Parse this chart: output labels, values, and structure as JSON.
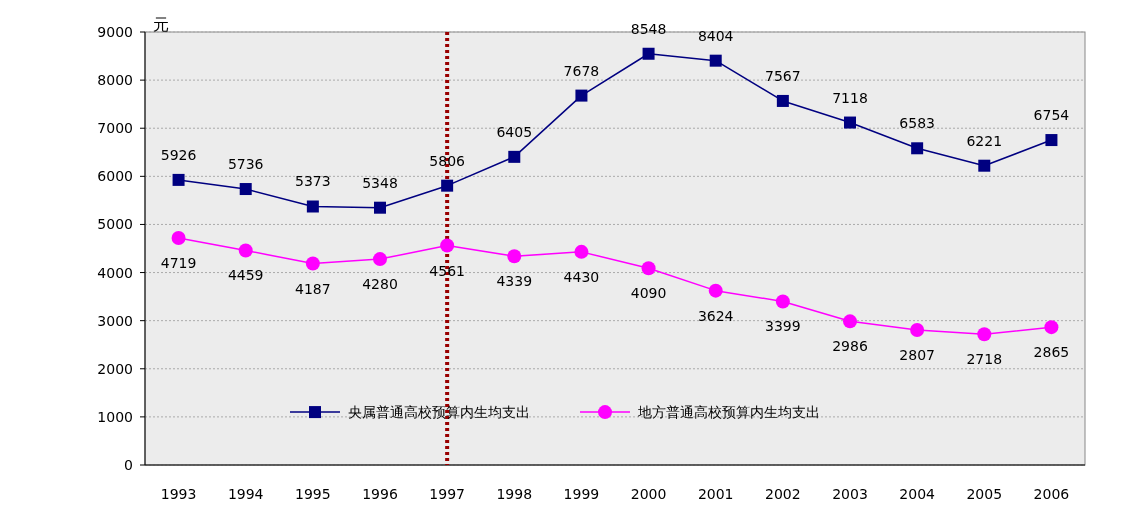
{
  "chart_data": {
    "type": "line",
    "ylabel": "元",
    "categories": [
      "1993",
      "1994",
      "1995",
      "1996",
      "1997",
      "1998",
      "1999",
      "2000",
      "2001",
      "2002",
      "2003",
      "2004",
      "2005",
      "2006"
    ],
    "series": [
      {
        "name": "央属普通高校预算内生均支出",
        "color": "#000080",
        "marker": "square",
        "values": [
          5926,
          5736,
          5373,
          5348,
          5806,
          6405,
          7678,
          8548,
          8404,
          7567,
          7118,
          6583,
          6221,
          6754
        ]
      },
      {
        "name": "地方普通高校预算内生均支出",
        "color": "#ff00ff",
        "marker": "circle",
        "values": [
          4719,
          4459,
          4187,
          4280,
          4561,
          4339,
          4430,
          4090,
          3624,
          3399,
          2986,
          2807,
          2718,
          2865
        ]
      }
    ],
    "ylim": [
      0,
      9000
    ],
    "yticks": [
      0,
      1000,
      2000,
      3000,
      4000,
      5000,
      6000,
      7000,
      8000,
      9000
    ],
    "grid": "y",
    "legend": "bottom",
    "data_labels": true,
    "ref_lines": [
      {
        "axis": "x",
        "value": "1997",
        "color": "#990000",
        "line_style": "dotted"
      }
    ]
  }
}
